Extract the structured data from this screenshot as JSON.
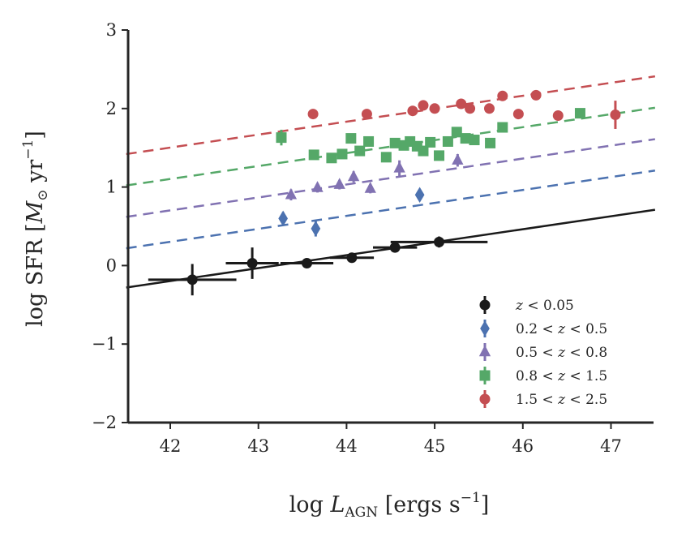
{
  "chart_data": {
    "type": "scatter",
    "title": "",
    "xlabel": "log L_AGN [ergs s^-1]",
    "ylabel": "log SFR [M_sun yr^-1]",
    "xlabel_parts": {
      "prefix": "log ",
      "main": "L",
      "sub": "AGN",
      "suffix": " [ergs s",
      "sup": "−1",
      "end": "]"
    },
    "ylabel_parts": {
      "prefix": "log SFR [",
      "main": "M",
      "sub": "⊙",
      "suffix": " yr",
      "sup": "−1",
      "end": "]"
    },
    "xlim": [
      41.5,
      47.5
    ],
    "ylim": [
      -2,
      3
    ],
    "xticks": [
      42,
      43,
      44,
      45,
      46,
      47
    ],
    "yticks": [
      -2,
      -1,
      0,
      1,
      2,
      3
    ],
    "ytick_labels": [
      "−2",
      "−1",
      "0",
      "1",
      "2",
      "3"
    ],
    "grid": false,
    "legend_position": "lower-right",
    "colors": {
      "axis": "#262626",
      "black": "#1a1a1a",
      "blue": "#4c72b0",
      "purple": "#8172b2",
      "green": "#55a868",
      "red": "#c44e52"
    },
    "series": [
      {
        "name": "z < 0.05",
        "label": "z < 0.05",
        "marker": "circle",
        "color": "#1a1a1a",
        "points": [
          {
            "x": 42.25,
            "y": -0.18,
            "xerr": 0.5,
            "yerr": 0.2
          },
          {
            "x": 42.93,
            "y": 0.03,
            "xerr": 0.3,
            "yerr": 0.2
          },
          {
            "x": 43.55,
            "y": 0.03,
            "xerr": 0.3,
            "yerr": 0.06
          },
          {
            "x": 44.06,
            "y": 0.1,
            "xerr": 0.25,
            "yerr": 0.04
          },
          {
            "x": 44.55,
            "y": 0.23,
            "xerr": 0.25,
            "yerr": 0.04
          },
          {
            "x": 45.05,
            "y": 0.3,
            "xerr": 0.55,
            "yerr": 0.07
          }
        ],
        "fit": {
          "intercept_at_41_5": -0.28,
          "slope": 0.165,
          "style": "solid"
        }
      },
      {
        "name": "0.2 < z < 0.5",
        "label": "0.2 < z < 0.5",
        "marker": "diamond",
        "color": "#4c72b0",
        "points": [
          {
            "x": 43.28,
            "y": 0.6,
            "yerr": 0.08
          },
          {
            "x": 43.65,
            "y": 0.47,
            "yerr": 0.1
          },
          {
            "x": 44.83,
            "y": 0.9,
            "yerr": 0.06
          }
        ],
        "fit": {
          "intercept_at_41_5": 0.22,
          "slope": 0.165,
          "style": "dashed"
        }
      },
      {
        "name": "0.5 < z < 0.8",
        "label": "0.5 < z < 0.8",
        "marker": "triangle",
        "color": "#8172b2",
        "points": [
          {
            "x": 43.37,
            "y": 0.9,
            "yerr": 0.07
          },
          {
            "x": 43.67,
            "y": 0.99,
            "yerr": 0.06
          },
          {
            "x": 43.92,
            "y": 1.03,
            "yerr": 0.06
          },
          {
            "x": 44.08,
            "y": 1.13,
            "yerr": 0.07
          },
          {
            "x": 44.27,
            "y": 0.98,
            "yerr": 0.06
          },
          {
            "x": 44.6,
            "y": 1.24,
            "yerr": 0.1
          },
          {
            "x": 45.26,
            "y": 1.34,
            "yerr": 0.08
          }
        ],
        "fit": {
          "intercept_at_41_5": 0.62,
          "slope": 0.165,
          "style": "dashed"
        }
      },
      {
        "name": "0.8 < z < 1.5",
        "label": "0.8 < z < 1.5",
        "marker": "square",
        "color": "#55a868",
        "points": [
          {
            "x": 43.26,
            "y": 1.63,
            "yerr": 0.1
          },
          {
            "x": 43.63,
            "y": 1.41,
            "yerr": 0.06
          },
          {
            "x": 43.83,
            "y": 1.37,
            "yerr": 0.04
          },
          {
            "x": 43.95,
            "y": 1.42,
            "yerr": 0.04
          },
          {
            "x": 44.05,
            "y": 1.62,
            "yerr": 0.06
          },
          {
            "x": 44.15,
            "y": 1.46,
            "yerr": 0.05
          },
          {
            "x": 44.25,
            "y": 1.58,
            "yerr": 0.05
          },
          {
            "x": 44.45,
            "y": 1.38,
            "yerr": 0.05
          },
          {
            "x": 44.55,
            "y": 1.56,
            "yerr": 0.05
          },
          {
            "x": 44.65,
            "y": 1.53,
            "yerr": 0.05
          },
          {
            "x": 44.72,
            "y": 1.58,
            "yerr": 0.05
          },
          {
            "x": 44.8,
            "y": 1.52,
            "yerr": 0.05
          },
          {
            "x": 44.87,
            "y": 1.46,
            "yerr": 0.05
          },
          {
            "x": 44.95,
            "y": 1.57,
            "yerr": 0.05
          },
          {
            "x": 45.05,
            "y": 1.4,
            "yerr": 0.04
          },
          {
            "x": 45.15,
            "y": 1.58,
            "yerr": 0.05
          },
          {
            "x": 45.25,
            "y": 1.7,
            "yerr": 0.05
          },
          {
            "x": 45.35,
            "y": 1.62,
            "yerr": 0.05
          },
          {
            "x": 45.45,
            "y": 1.6,
            "yerr": 0.05
          },
          {
            "x": 45.63,
            "y": 1.56,
            "yerr": 0.05
          },
          {
            "x": 45.77,
            "y": 1.76,
            "yerr": 0.05
          },
          {
            "x": 46.65,
            "y": 1.94,
            "yerr": 0.06
          }
        ],
        "fit": {
          "intercept_at_41_5": 1.02,
          "slope": 0.165,
          "style": "dashed"
        }
      },
      {
        "name": "1.5 < z < 2.5",
        "label": "1.5 < z < 2.5",
        "marker": "circle",
        "color": "#c44e52",
        "points": [
          {
            "x": 43.62,
            "y": 1.93,
            "yerr": 0.05
          },
          {
            "x": 44.23,
            "y": 1.93,
            "yerr": 0.05
          },
          {
            "x": 44.75,
            "y": 1.97,
            "yerr": 0.05
          },
          {
            "x": 44.87,
            "y": 2.04,
            "yerr": 0.04
          },
          {
            "x": 45.0,
            "y": 2.0,
            "yerr": 0.05
          },
          {
            "x": 45.3,
            "y": 2.06,
            "yerr": 0.05
          },
          {
            "x": 45.4,
            "y": 2.0,
            "yerr": 0.05
          },
          {
            "x": 45.62,
            "y": 2.0,
            "yerr": 0.05
          },
          {
            "x": 45.77,
            "y": 2.16,
            "yerr": 0.06
          },
          {
            "x": 45.95,
            "y": 1.93,
            "yerr": 0.05
          },
          {
            "x": 46.15,
            "y": 2.17,
            "yerr": 0.05
          },
          {
            "x": 46.4,
            "y": 1.91,
            "yerr": 0.05
          },
          {
            "x": 47.05,
            "y": 1.92,
            "yerr": 0.18
          }
        ],
        "fit": {
          "intercept_at_41_5": 1.42,
          "slope": 0.165,
          "style": "dashed"
        }
      }
    ]
  }
}
